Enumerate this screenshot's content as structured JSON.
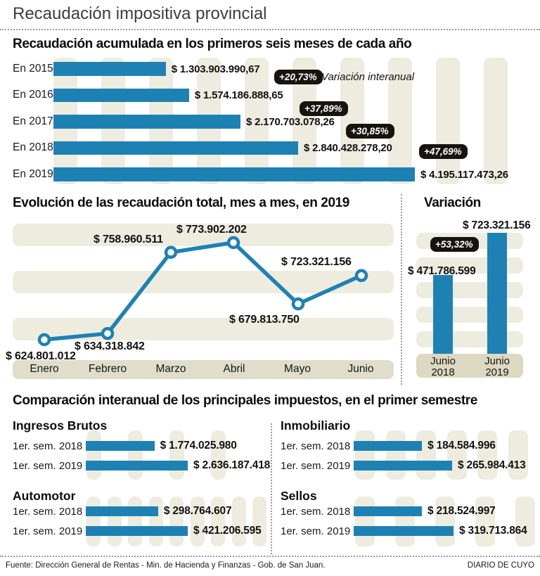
{
  "page_title": "Recaudación impositiva provincial",
  "colors": {
    "bar_blue": "#1e81b4",
    "stripe": "#edecdf",
    "axis_band_light": "#e0decb",
    "axis_band_dark": "#dcd8c1",
    "badge_bg": "#17130e",
    "badge_text": "#ffffff"
  },
  "chart_data": [
    {
      "id": "accumulated-first-semester",
      "type": "bar",
      "orientation": "horizontal",
      "title": "Recaudación acumulada en los primeros seis meses de cada año",
      "categories": [
        "En 2015",
        "En 2016",
        "En 2017",
        "En 2018",
        "En 2019"
      ],
      "values": [
        1303903990.67,
        1574186888.65,
        2170703078.26,
        2840428278.2,
        4195117473.26
      ],
      "value_labels": [
        "$ 1.303.903.990,67",
        "$ 1.574.186.888,65",
        "$ 2.170.703.078,26",
        "$ 2.840.428.278,20",
        "$ 4.195.117.473,26"
      ],
      "badges": [
        "+20,73%",
        "+37,89%",
        "+30,85%",
        "+47,69%"
      ],
      "badge_note": "Variación interanual",
      "xlim": [
        0,
        4195117473.26
      ],
      "grid": false
    },
    {
      "id": "monthly-evolution-2019",
      "type": "line",
      "title": "Evolución de las recaudación total, mes a mes, en 2019",
      "x": [
        "Enero",
        "Febrero",
        "Marzo",
        "Abril",
        "Mayo",
        "Junio"
      ],
      "values": [
        624801012,
        634318842,
        758960511,
        773902202,
        679813750,
        723321156
      ],
      "value_labels": [
        "$ 624.801.012",
        "$ 634.318.842",
        "$ 758.960.511",
        "$ 773.902.202",
        "$ 679.813.750",
        "$ 723.321.156"
      ],
      "label_positions": [
        "below",
        "below",
        "above",
        "above",
        "below",
        "above"
      ],
      "grid": false
    },
    {
      "id": "june-variation",
      "type": "bar",
      "orientation": "vertical",
      "title": "Variación",
      "categories": [
        "Junio 2018",
        "Junio 2019"
      ],
      "values": [
        471786599,
        723321156
      ],
      "value_labels": [
        "$ 471.786.599",
        "$ 723.321.156"
      ],
      "badge": "+53,32%",
      "grid": false
    },
    {
      "id": "main-taxes-comparison",
      "type": "bar",
      "orientation": "horizontal",
      "title": "Comparación interanual de los principales impuestos, en el primer semestre",
      "row_labels": [
        "1er. sem. 2018",
        "1er. sem. 2019"
      ],
      "groups": [
        {
          "name": "Ingresos Brutos",
          "values": [
            1774025980,
            2636187418
          ],
          "value_labels": [
            "$ 1.774.025.980",
            "$ 2.636.187.418"
          ]
        },
        {
          "name": "Inmobiliario",
          "values": [
            184584996,
            265984413
          ],
          "value_labels": [
            "$ 184.584.996",
            "$ 265.984.413"
          ]
        },
        {
          "name": "Automotor",
          "values": [
            298764607,
            421206595
          ],
          "value_labels": [
            "$ 298.764.607",
            "$ 421.206.595"
          ]
        },
        {
          "name": "Sellos",
          "values": [
            218524997,
            319713864
          ],
          "value_labels": [
            "$ 218.524.997",
            "$ 319.713.864"
          ]
        }
      ]
    }
  ],
  "footer": {
    "source": "Fuente: Dirección General de Rentas - Min. de Hacienda y Finanzas - Gob. de San Juan.",
    "credit": "DIARIO DE CUYO"
  }
}
